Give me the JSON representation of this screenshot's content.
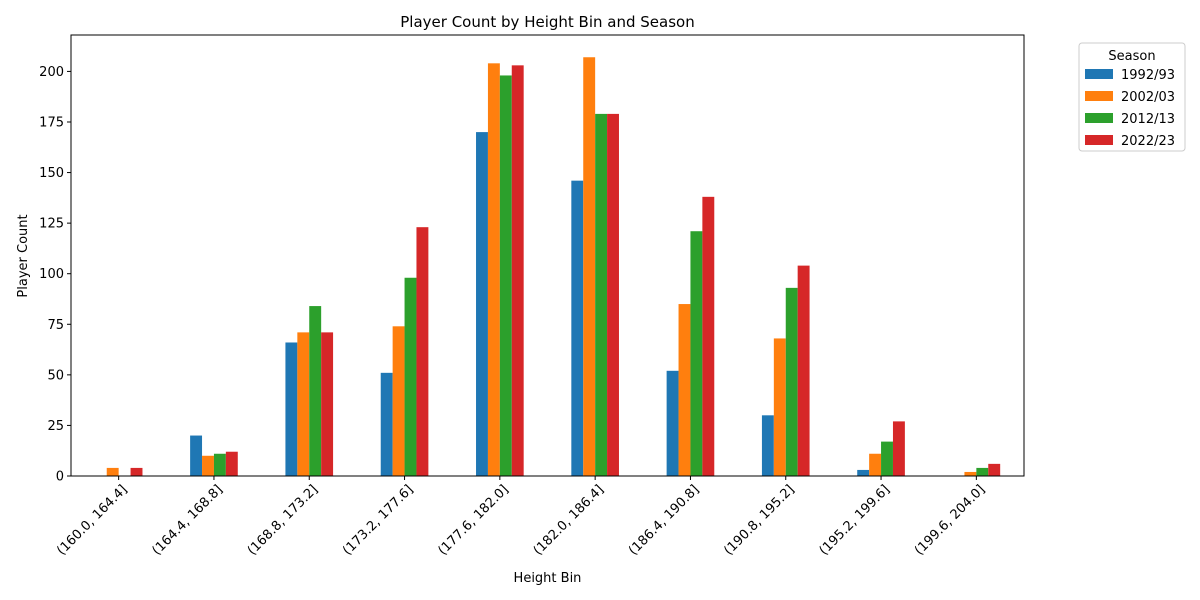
{
  "chart_data": {
    "type": "bar",
    "title": "Player Count by Height Bin and Season",
    "xlabel": "Height Bin",
    "ylabel": "Player Count",
    "ylim": [
      0,
      218
    ],
    "yticks": [
      0,
      25,
      50,
      75,
      100,
      125,
      150,
      175,
      200
    ],
    "grid": false,
    "legend": {
      "title": "Season",
      "placement": "outside-top-right"
    },
    "categories": [
      "(160.0, 164.4]",
      "(164.4, 168.8]",
      "(168.8, 173.2]",
      "(173.2, 177.6]",
      "(177.6, 182.0]",
      "(182.0, 186.4]",
      "(186.4, 190.8]",
      "(190.8, 195.2]",
      "(195.2, 199.6]",
      "(199.6, 204.0]"
    ],
    "series": [
      {
        "name": "1992/93",
        "color": "#1f77b4",
        "values": [
          0,
          20,
          66,
          51,
          170,
          146,
          52,
          30,
          3,
          0
        ]
      },
      {
        "name": "2002/03",
        "color": "#ff7f0e",
        "values": [
          4,
          10,
          71,
          74,
          204,
          207,
          85,
          68,
          11,
          2
        ]
      },
      {
        "name": "2012/13",
        "color": "#2ca02c",
        "values": [
          0,
          11,
          84,
          98,
          198,
          179,
          121,
          93,
          17,
          4
        ]
      },
      {
        "name": "2022/23",
        "color": "#d62728",
        "values": [
          4,
          12,
          71,
          123,
          203,
          179,
          138,
          104,
          27,
          6
        ]
      }
    ]
  }
}
